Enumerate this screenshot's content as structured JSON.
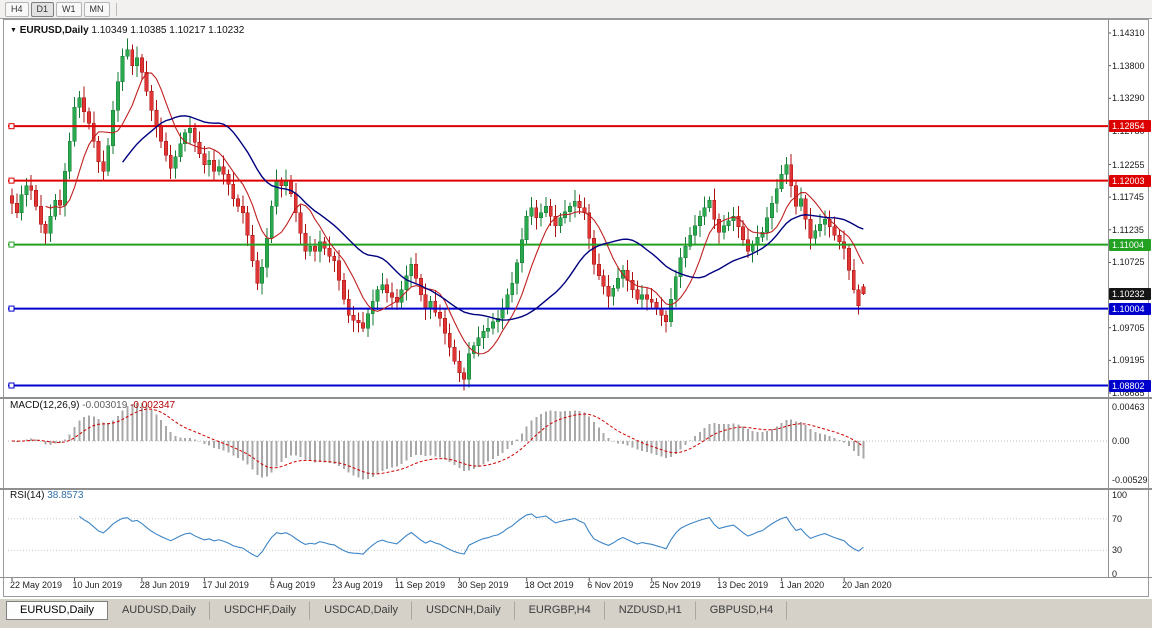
{
  "toolbar": {
    "timeframes": [
      {
        "label": "H4",
        "active": false
      },
      {
        "label": "D1",
        "active": true
      },
      {
        "label": "W1",
        "active": false
      },
      {
        "label": "MN",
        "active": false
      }
    ]
  },
  "title_overlay": {
    "symbol": "EURUSD,Daily",
    "ohlc": "1.10349 1.10385 1.10217 1.10232"
  },
  "chart_data": {
    "type": "candlestick",
    "symbol": "EURUSD",
    "timeframe": "Daily",
    "current_bar": {
      "open": 1.10349,
      "high": 1.10385,
      "low": 1.10217,
      "close": 1.10232
    },
    "bid_label": "1.10232",
    "y_ticks": [
      "1.14310",
      "1.13800",
      "1.13290",
      "1.12780",
      "1.12255",
      "1.11745",
      "1.11235",
      "1.10725",
      "1.09705",
      "1.09195",
      "1.08685"
    ],
    "levels": [
      {
        "price": 1.12854,
        "label": "1.12854",
        "color": "#dd0000",
        "width": 2
      },
      {
        "price": 1.12003,
        "label": "1.12003",
        "color": "#dd0000",
        "width": 2
      },
      {
        "price": 1.11004,
        "label": "1.11004",
        "color": "#22a122",
        "width": 2
      },
      {
        "price": 1.10004,
        "label": "1.10004",
        "color": "#0000cd",
        "width": 2
      },
      {
        "price": 1.08802,
        "label": "1.08802",
        "color": "#0000cd",
        "width": 2
      }
    ],
    "closes": [
      1.1165,
      1.115,
      1.1178,
      1.1192,
      1.1185,
      1.116,
      1.1132,
      1.1118,
      1.1145,
      1.117,
      1.1162,
      1.1215,
      1.1262,
      1.1315,
      1.133,
      1.1308,
      1.129,
      1.1262,
      1.123,
      1.1215,
      1.1255,
      1.131,
      1.1355,
      1.1395,
      1.1405,
      1.138,
      1.1392,
      1.137,
      1.134,
      1.131,
      1.1285,
      1.1262,
      1.124,
      1.122,
      1.1238,
      1.1258,
      1.1275,
      1.1282,
      1.126,
      1.1242,
      1.1225,
      1.1232,
      1.1215,
      1.1222,
      1.121,
      1.1195,
      1.1172,
      1.116,
      1.115,
      1.1115,
      1.1075,
      1.104,
      1.1065,
      1.111,
      1.116,
      1.12,
      1.1192,
      1.12,
      1.118,
      1.115,
      1.1118,
      1.109,
      1.1098,
      1.109,
      1.1105,
      1.1095,
      1.1082,
      1.1075,
      1.1045,
      1.1015,
      1.099,
      1.0982,
      1.0978,
      1.097,
      1.0992,
      1.1012,
      1.103,
      1.1038,
      1.1025,
      1.1018,
      1.101,
      1.103,
      1.1052,
      1.107,
      1.1048,
      1.1022,
      1.1,
      1.1012,
      1.0995,
      1.0985,
      1.0962,
      1.094,
      1.0918,
      1.09,
      1.089,
      1.093,
      1.0942,
      1.0955,
      1.0965,
      1.097,
      1.098,
      1.0985,
      1.1,
      1.1022,
      1.104,
      1.1072,
      1.1108,
      1.1145,
      1.1158,
      1.1142,
      1.115,
      1.116,
      1.1145,
      1.113,
      1.1142,
      1.1152,
      1.116,
      1.1168,
      1.1158,
      1.115,
      1.111,
      1.107,
      1.1052,
      1.1035,
      1.102,
      1.1032,
      1.1048,
      1.106,
      1.1045,
      1.103,
      1.1015,
      1.1022,
      1.1015,
      1.101,
      1.1,
      1.099,
      1.098,
      1.1015,
      1.105,
      1.108,
      1.1098,
      1.1115,
      1.113,
      1.1145,
      1.1158,
      1.117,
      1.114,
      1.112,
      1.113,
      1.1138,
      1.1145,
      1.1128,
      1.1108,
      1.109,
      1.11,
      1.1112,
      1.112,
      1.1142,
      1.1165,
      1.1188,
      1.121,
      1.1225,
      1.1192,
      1.116,
      1.1172,
      1.114,
      1.111,
      1.1122,
      1.1132,
      1.114,
      1.1128,
      1.1115,
      1.1105,
      1.1095,
      1.106,
      1.103,
      1.1005,
      1.10232
    ],
    "x_labels": [
      {
        "text": "22 May 2019",
        "i": 0
      },
      {
        "text": "10 Jun 2019",
        "i": 13
      },
      {
        "text": "28 Jun 2019",
        "i": 27
      },
      {
        "text": "17 Jul 2019",
        "i": 40
      },
      {
        "text": "5 Aug 2019",
        "i": 54
      },
      {
        "text": "23 Aug 2019",
        "i": 67
      },
      {
        "text": "11 Sep 2019",
        "i": 80
      },
      {
        "text": "30 Sep 2019",
        "i": 93
      },
      {
        "text": "18 Oct 2019",
        "i": 107
      },
      {
        "text": "6 Nov 2019",
        "i": 120
      },
      {
        "text": "25 Nov 2019",
        "i": 133
      },
      {
        "text": "13 Dec 2019",
        "i": 147
      },
      {
        "text": "1 Jan 2020",
        "i": 160
      },
      {
        "text": "20 Jan 2020",
        "i": 173
      }
    ],
    "moving_averages": [
      {
        "period": 8,
        "color": "#c02020"
      },
      {
        "period": 24,
        "color": "#000080"
      }
    ],
    "macd": {
      "name": "MACD(12,26,9)",
      "fast": 12,
      "slow": 26,
      "signal": 9,
      "value": "-0.003019",
      "signal_value": "-0.002347",
      "scale": [
        "0.00463",
        "0.00",
        "-0.00529"
      ],
      "histogram_color": "#a8a8a8",
      "signal_color": "#d00000"
    },
    "rsi": {
      "name": "RSI(14)",
      "period": 14,
      "value": "38.8573",
      "scale": [
        100,
        70,
        30,
        0
      ],
      "levels": [
        70,
        30
      ],
      "line_color": "#3d85c6"
    }
  },
  "tabs": [
    {
      "label": "EURUSD,Daily",
      "active": true
    },
    {
      "label": "AUDUSD,Daily",
      "active": false
    },
    {
      "label": "USDCHF,Daily",
      "active": false
    },
    {
      "label": "USDCAD,Daily",
      "active": false
    },
    {
      "label": "USDCNH,Daily",
      "active": false
    },
    {
      "label": "EURGBP,H4",
      "active": false
    },
    {
      "label": "NZDUSD,H1",
      "active": false
    },
    {
      "label": "GBPUSD,H4",
      "active": false
    }
  ],
  "colors": {
    "up": "#2aa84e",
    "up_border": "#157a33",
    "down": "#e03535",
    "down_border": "#aa1111",
    "current_price_bg": "#151515",
    "panel_border": "#8f8f8f",
    "tabbar_bg": "#d5d1c9"
  }
}
